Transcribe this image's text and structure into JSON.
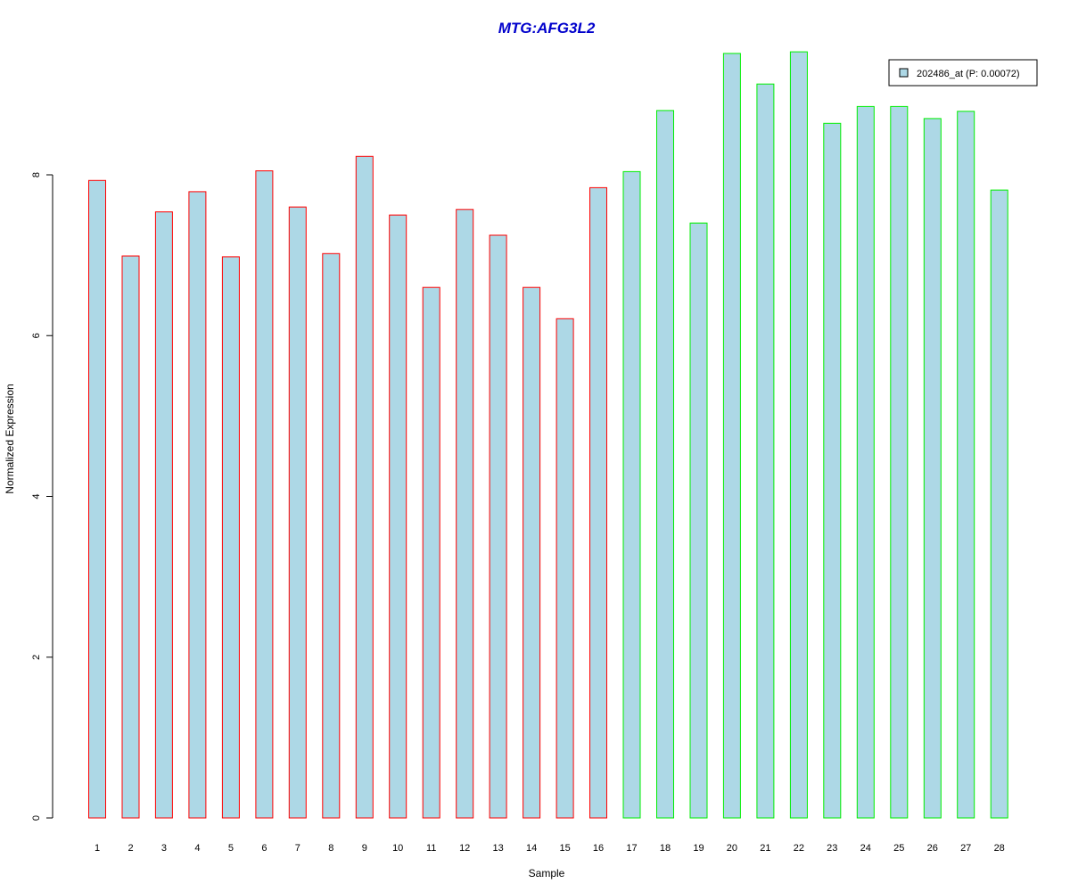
{
  "chart_data": {
    "type": "bar",
    "title": "MTG:AFG3L2",
    "xlabel": "Sample",
    "ylabel": "Normalized Expression",
    "categories": [
      "1",
      "2",
      "3",
      "4",
      "5",
      "6",
      "7",
      "8",
      "9",
      "10",
      "11",
      "12",
      "13",
      "14",
      "15",
      "16",
      "17",
      "18",
      "19",
      "20",
      "21",
      "22",
      "23",
      "24",
      "25",
      "26",
      "27",
      "28"
    ],
    "series": [
      {
        "name": "202486_at (P: 0.00072)",
        "values": [
          7.93,
          6.99,
          7.54,
          7.79,
          6.98,
          8.05,
          7.6,
          7.02,
          8.23,
          7.5,
          6.6,
          7.57,
          7.25,
          6.6,
          6.21,
          7.84,
          8.04,
          8.8,
          7.4,
          9.51,
          9.13,
          9.53,
          8.64,
          8.85,
          8.85,
          8.7,
          8.79,
          7.81
        ]
      }
    ],
    "groups": [
      {
        "samples": [
          1,
          16
        ],
        "border_color": "#ff0000"
      },
      {
        "samples": [
          17,
          28
        ],
        "border_color": "#00ee00"
      }
    ],
    "ylim": [
      0,
      9.53
    ],
    "yticks": [
      0,
      2,
      4,
      6,
      8
    ],
    "grid": false,
    "legend_position": "top-right",
    "colors": {
      "title": "#0000cc",
      "bar_fill": "#add8e6",
      "axis": "#000000"
    }
  }
}
